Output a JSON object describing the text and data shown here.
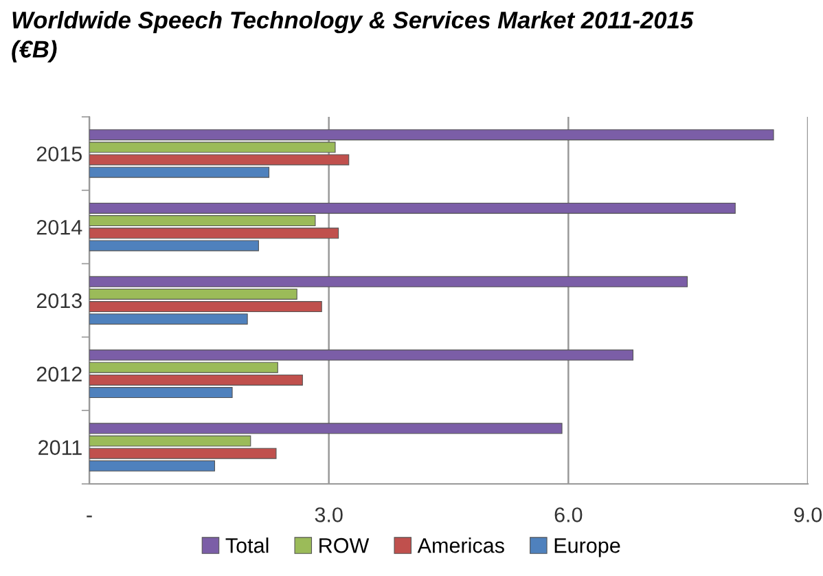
{
  "chart_data": {
    "type": "bar",
    "orientation": "horizontal",
    "title": "Worldwide Speech Technology & Services Market 2011-2015\n(€B)",
    "categories": [
      "2015",
      "2014",
      "2013",
      "2012",
      "2011"
    ],
    "series": [
      {
        "name": "Total",
        "color": "#7b5ea7",
        "values": [
          8.57,
          8.09,
          7.49,
          6.81,
          5.92
        ]
      },
      {
        "name": "ROW",
        "color": "#9bbb59",
        "values": [
          3.08,
          2.83,
          2.6,
          2.36,
          2.02
        ]
      },
      {
        "name": "Americas",
        "color": "#c0504d",
        "values": [
          3.25,
          3.12,
          2.91,
          2.67,
          2.34
        ]
      },
      {
        "name": "Europe",
        "color": "#4f81bd",
        "values": [
          2.25,
          2.12,
          1.98,
          1.79,
          1.57
        ]
      }
    ],
    "xlim": [
      0,
      9
    ],
    "xticks": [
      {
        "value": 0,
        "label": "-"
      },
      {
        "value": 3,
        "label": "3.0"
      },
      {
        "value": 6,
        "label": "6.0"
      },
      {
        "value": 9,
        "label": "9.0"
      }
    ],
    "grid": "x",
    "legend": "bottom"
  }
}
